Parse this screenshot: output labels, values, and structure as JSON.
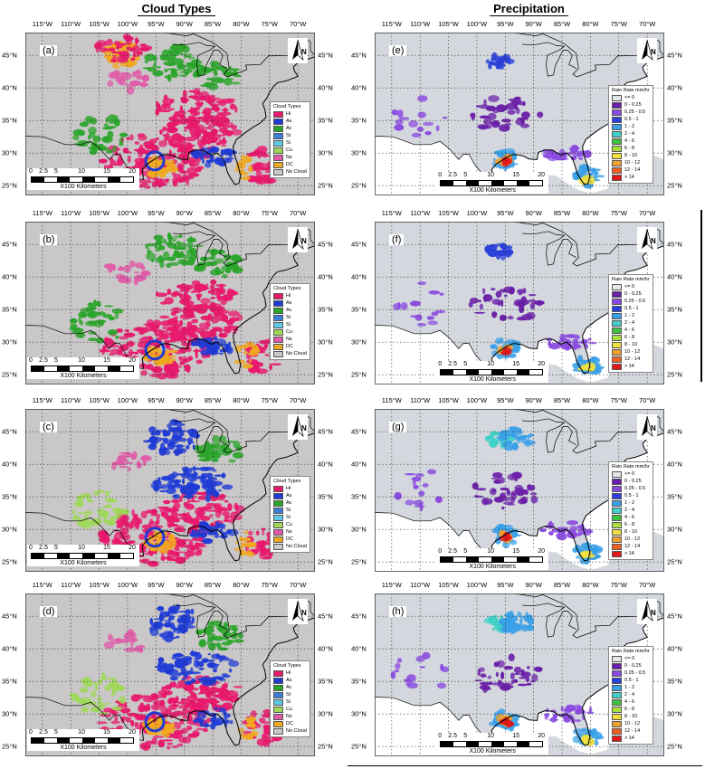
{
  "headers": {
    "left": "Cloud Types",
    "right": "Precipitation"
  },
  "axes": {
    "lon_labels": [
      "115°W",
      "110°W",
      "105°W",
      "100°W",
      "95°W",
      "90°W",
      "85°W",
      "80°W",
      "75°W",
      "70°W"
    ],
    "lat_labels": [
      "45°N",
      "40°N",
      "35°N",
      "30°N",
      "25°N"
    ]
  },
  "scale_bar": {
    "ticks": [
      "0",
      "2.5",
      "5",
      "10",
      "15",
      "20"
    ],
    "unit": "X100 Kilometers"
  },
  "north_label": "N",
  "cloud_legend": {
    "title": "Cloud Types",
    "items": [
      {
        "label": "Hi",
        "color": "#e8186c"
      },
      {
        "label": "As",
        "color": "#1f3bd6"
      },
      {
        "label": "Ac",
        "color": "#2aa52a"
      },
      {
        "label": "St",
        "color": "#3a80d8"
      },
      {
        "label": "Si",
        "color": "#5ec8e8"
      },
      {
        "label": "Cu",
        "color": "#9ed858"
      },
      {
        "label": "Ns",
        "color": "#e05aa8"
      },
      {
        "label": "DC",
        "color": "#f0a820"
      },
      {
        "label": "No Cloud",
        "color": "#c9c7c8"
      }
    ]
  },
  "rain_legend": {
    "title": "Rain Rate mm/hr",
    "items": [
      {
        "label": "<= 0",
        "color": "#e6e6ea"
      },
      {
        "label": "0 - 0.25",
        "color": "#6a1fa8"
      },
      {
        "label": "0.25 - 0.5",
        "color": "#8a4ae0"
      },
      {
        "label": "0.5 - 1",
        "color": "#2a40d8"
      },
      {
        "label": "1 - 2",
        "color": "#3aa0e8"
      },
      {
        "label": "2 - 4",
        "color": "#40d0c8"
      },
      {
        "label": "4 - 6",
        "color": "#40c040"
      },
      {
        "label": "6 - 8",
        "color": "#a8e040"
      },
      {
        "label": "8 - 10",
        "color": "#f0e040"
      },
      {
        "label": "10 - 12",
        "color": "#f0a030"
      },
      {
        "label": "12 - 14",
        "color": "#f06020"
      },
      {
        "label": "> 14",
        "color": "#e01818"
      }
    ]
  },
  "panels": [
    {
      "letter": "(a)",
      "kind": "cloud"
    },
    {
      "letter": "(b)",
      "kind": "cloud"
    },
    {
      "letter": "(c)",
      "kind": "cloud"
    },
    {
      "letter": "(d)",
      "kind": "cloud"
    },
    {
      "letter": "(e)",
      "kind": "rain"
    },
    {
      "letter": "(f)",
      "kind": "rain"
    },
    {
      "letter": "(g)",
      "kind": "rain"
    },
    {
      "letter": "(h)",
      "kind": "rain"
    }
  ]
}
